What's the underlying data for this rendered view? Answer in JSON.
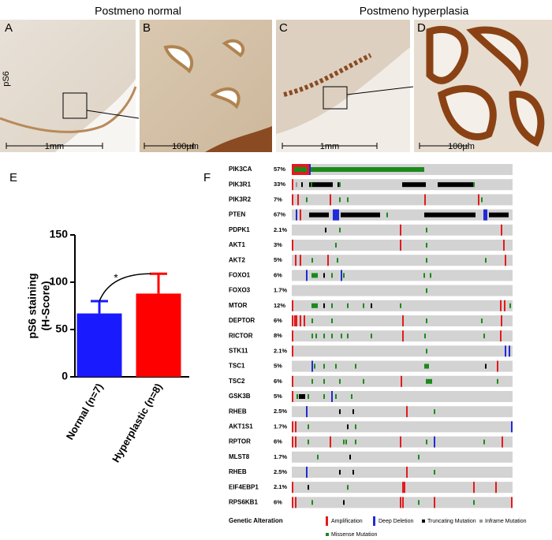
{
  "panels": {
    "header": {
      "left": "Postmeno normal",
      "right": "Postmeno hyperplasia"
    },
    "labels": [
      "A",
      "B",
      "C",
      "D",
      "E",
      "F"
    ],
    "stain": "pS6",
    "scale_bars": [
      "1mm",
      "100µm",
      "1mm",
      "100µm"
    ]
  },
  "chart_data": {
    "type": "bar",
    "y_label": [
      "pS6 staining",
      "(H-Score)"
    ],
    "categories": [
      "Normal (n=7)",
      "Hyperplastic (n=8)"
    ],
    "values": [
      67,
      88
    ],
    "errors": [
      13,
      21
    ],
    "colors": [
      "#1a1aff",
      "#ff0000"
    ],
    "ylim": [
      0,
      150
    ],
    "yticks": [
      0,
      50,
      100,
      150
    ],
    "significance": "*"
  },
  "oncoprint": {
    "genes": [
      {
        "name": "PIK3CA",
        "percent": "57%"
      },
      {
        "name": "PIK3R1",
        "percent": "33%"
      },
      {
        "name": "PIK3R2",
        "percent": "7%"
      },
      {
        "name": "PTEN",
        "percent": "67%"
      },
      {
        "name": "PDPK1",
        "percent": "2.1%"
      },
      {
        "name": "AKT1",
        "percent": "3%"
      },
      {
        "name": "AKT2",
        "percent": "5%"
      },
      {
        "name": "FOXO1",
        "percent": "6%"
      },
      {
        "name": "FOXO3",
        "percent": "1.7%"
      },
      {
        "name": "MTOR",
        "percent": "12%"
      },
      {
        "name": "DEPTOR",
        "percent": "6%"
      },
      {
        "name": "RICTOR",
        "percent": "8%"
      },
      {
        "name": "STK11",
        "percent": "2.1%"
      },
      {
        "name": "TSC1",
        "percent": "5%"
      },
      {
        "name": "TSC2",
        "percent": "6%"
      },
      {
        "name": "GSK3B",
        "percent": "5%"
      },
      {
        "name": "RHEB",
        "percent": "2.5%"
      },
      {
        "name": "AKT1S1",
        "percent": "1.7%"
      },
      {
        "name": "RPTOR",
        "percent": "6%"
      },
      {
        "name": "MLST8",
        "percent": "1.7%"
      },
      {
        "name": "RHEB",
        "percent": "2.5%"
      },
      {
        "name": "EIF4EBP1",
        "percent": "2.1%"
      },
      {
        "name": "RPS6KB1",
        "percent": "6%"
      }
    ],
    "legend": {
      "title": "Genetic Alteration",
      "items": [
        {
          "label": "Amplification",
          "color": "#e41a1c"
        },
        {
          "label": "Deep Deletion",
          "color": "#1f2bd6"
        },
        {
          "label": "Truncating Mutation",
          "color": "#000000"
        },
        {
          "label": "Inframe Mutation",
          "color": "#999999"
        },
        {
          "label": "Missense Mutation",
          "color": "#1b8a1b"
        }
      ]
    }
  }
}
